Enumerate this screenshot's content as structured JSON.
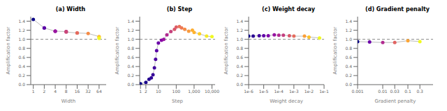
{
  "chart_data": [
    {
      "type": "line",
      "title": "(a) Width",
      "x_label": "Width",
      "y_label": "Amplification factor",
      "log": "x",
      "xlim": [
        0.85,
        100
      ],
      "xticks": [
        1,
        2,
        4,
        8,
        16,
        32,
        64
      ],
      "ylim": [
        0.0,
        1.5
      ],
      "yticks": [
        {
          "value": 0.0,
          "label": "0.0"
        },
        0.2,
        0.4,
        0.6,
        0.8,
        {
          "value": 1.0,
          "label": "1.0"
        },
        1.2,
        1.4
      ],
      "x": [
        1,
        2,
        2,
        4,
        4,
        4,
        8,
        8,
        8,
        16,
        16,
        32,
        64,
        64,
        64
      ],
      "series": [
        {
          "type": "line",
          "color": "#bbbbbb",
          "marker": "circle",
          "colors": [
            "#0d0887",
            "#4c02a1",
            "#5c01a6",
            "#8606a6",
            "#8f0da4",
            "#9a169f",
            "#bb3488",
            "#c23d81",
            "#ca4678",
            "#df6263",
            "#e56b5d",
            "#f58c46",
            "#fdad32",
            "#fcce25",
            "#f0f921"
          ],
          "values": [
            1.44,
            1.25,
            1.25,
            1.18,
            1.18,
            1.18,
            1.17,
            1.17,
            1.16,
            1.14,
            1.14,
            1.13,
            1.06,
            1.05,
            1.02
          ]
        }
      ],
      "reference_lines": [
        {
          "y": 1.0,
          "color": "#888888",
          "line_style": "dashed"
        }
      ]
    },
    {
      "type": "line",
      "title": "(b) Step",
      "x_label": "Step",
      "y_label": "Amplification factor",
      "log": "x",
      "xlim": [
        0.9,
        15000
      ],
      "xticks": [
        1,
        2,
        10,
        100,
        {
          "value": 1000,
          "label": "1,000"
        },
        {
          "value": 10000,
          "label": "10,000"
        }
      ],
      "ylim": [
        0.0,
        1.5
      ],
      "yticks": [
        {
          "value": 0.0,
          "label": "0.0"
        },
        0.2,
        0.4,
        0.6,
        0.8,
        {
          "value": 1.0,
          "label": "1.0"
        },
        1.2,
        1.4
      ],
      "x": [
        1,
        2,
        3,
        4,
        5,
        6,
        7,
        8,
        10,
        15,
        20,
        30,
        50,
        80,
        100,
        150,
        200,
        300,
        500,
        800,
        1000,
        2000,
        5000,
        10000
      ],
      "series": [
        {
          "type": "line",
          "color": "#bbbbbb",
          "marker": "circle",
          "colors": [
            "#0d0887",
            "#1a068c",
            "#250591",
            "#2e0595",
            "#380499",
            "#41049d",
            "#4c02a1",
            "#5901a5",
            "#6a00a8",
            "#8606a6",
            "#9a169f",
            "#b12a90",
            "#c6417d",
            "#d8576b",
            "#dd5e66",
            "#e8725a",
            "#ed7953",
            "#f58c46",
            "#fa9b3c",
            "#fdad32",
            "#feb32f",
            "#fcce25",
            "#f5eb24",
            "#f0f921"
          ],
          "values": [
            0.02,
            0.05,
            0.12,
            0.15,
            0.22,
            0.37,
            0.56,
            0.75,
            0.92,
            0.98,
            1.0,
            1.1,
            1.17,
            1.22,
            1.27,
            1.28,
            1.25,
            1.22,
            1.18,
            1.2,
            1.15,
            1.12,
            1.07,
            1.06
          ]
        }
      ],
      "reference_lines": [
        {
          "y": 1.0,
          "color": "#888888",
          "line_style": "dashed"
        }
      ]
    },
    {
      "type": "line",
      "title": "(c) Weight decay",
      "x_label": "Weight decay",
      "y_label": "Amplification factor",
      "log": "x",
      "xlim": [
        1e-06,
        0.1
      ],
      "xticks": [
        {
          "value": 1e-06,
          "label": "1e-6"
        },
        {
          "value": 1e-05,
          "label": "1e-5"
        },
        {
          "value": 0.0001,
          "label": "1e-4"
        },
        {
          "value": 0.001,
          "label": "1e-3"
        },
        {
          "value": 0.01,
          "label": "1e-2"
        },
        {
          "value": 0.1,
          "label": "1e-1"
        }
      ],
      "ylim": [
        0.0,
        1.5
      ],
      "yticks": [
        {
          "value": 0.0,
          "label": "0.0"
        },
        0.2,
        0.4,
        0.6,
        0.8,
        {
          "value": 1.0,
          "label": "1.0"
        },
        1.2,
        1.4
      ],
      "x": [
        1e-06,
        2e-06,
        5e-06,
        1e-05,
        2e-05,
        5e-05,
        0.0001,
        0.0002,
        0.0005,
        0.001,
        0.005,
        0.01,
        0.05
      ],
      "series": [
        {
          "type": "line",
          "color": "#bbbbbb",
          "marker": "circle",
          "colors": [
            "#0d0887",
            "#2a0593",
            "#41049d",
            "#6100a7",
            "#7e03a8",
            "#9613a0",
            "#b12a90",
            "#c43e7f",
            "#d8576b",
            "#e56b5d",
            "#fb9f3a",
            "#fdc328",
            "#f0f921"
          ],
          "values": [
            1.07,
            1.07,
            1.08,
            1.08,
            1.08,
            1.1,
            1.09,
            1.09,
            1.08,
            1.07,
            1.07,
            1.05,
            1.03
          ]
        }
      ],
      "reference_lines": [
        {
          "y": 1.0,
          "color": "#888888",
          "line_style": "dashed"
        }
      ]
    },
    {
      "type": "line",
      "title": "(d) Gradient penalty",
      "x_label": "Gradient penalty",
      "y_label": "Amplification factor",
      "log": "x",
      "xlim": [
        0.001,
        1
      ],
      "xticks": [
        0.001,
        0.01,
        0.03,
        0.1,
        0.3
      ],
      "ylim": [
        0.0,
        1.5
      ],
      "yticks": [
        {
          "value": 0.0,
          "label": "0.0"
        },
        0.2,
        0.4,
        0.6,
        0.8,
        {
          "value": 1.0,
          "label": "1.0"
        },
        1.2,
        1.4
      ],
      "x": [
        0.001,
        0.003,
        0.01,
        0.03,
        0.1,
        0.3
      ],
      "series": [
        {
          "type": "line",
          "color": "#bbbbbb",
          "marker": "circle",
          "colors": [
            "#0d0887",
            "#6a00a8",
            "#b12a90",
            "#e16462",
            "#fca636",
            "#f0f921"
          ],
          "values": [
            0.95,
            0.94,
            0.93,
            0.93,
            0.97,
            0.95
          ]
        }
      ],
      "reference_lines": [
        {
          "y": 1.0,
          "color": "#888888",
          "line_style": "dashed"
        }
      ]
    }
  ]
}
